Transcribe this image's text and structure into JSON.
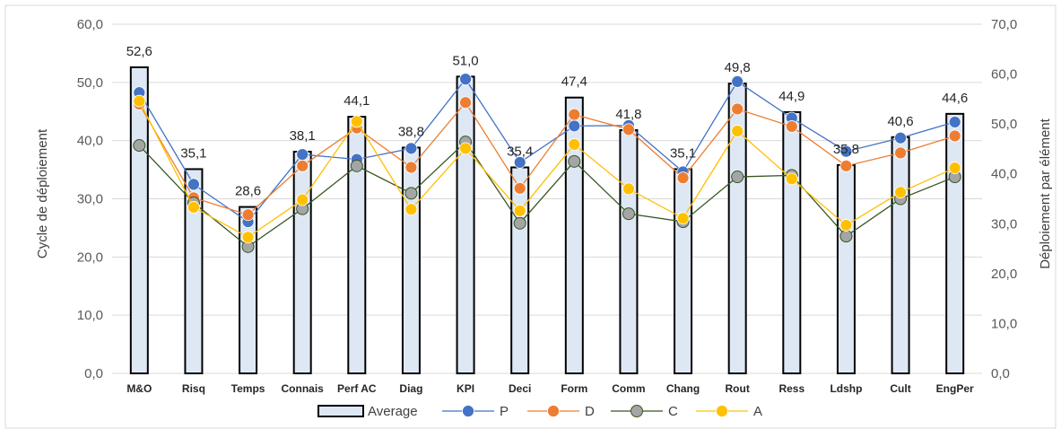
{
  "chart_data": {
    "type": "bar",
    "categories": [
      "M&O",
      "Risq",
      "Temps",
      "Connais",
      "Perf AC",
      "Diag",
      "KPI",
      "Deci",
      "Form",
      "Comm",
      "Chang",
      "Rout",
      "Ress",
      "Ldshp",
      "Cult",
      "EngPer"
    ],
    "bar_series": {
      "name": "Average",
      "values": [
        52.6,
        35.1,
        28.6,
        38.1,
        44.1,
        38.8,
        51.0,
        35.4,
        47.4,
        41.8,
        35.1,
        49.8,
        44.9,
        35.8,
        40.6,
        44.6
      ],
      "labels": [
        "52,6",
        "35,1",
        "28,6",
        "38,1",
        "44,1",
        "38,8",
        "51,0",
        "35,4",
        "47,4",
        "41,8",
        "35,1",
        "49,8",
        "44,9",
        "35,8",
        "40,6",
        "44,6"
      ],
      "fill": "#dee8f5",
      "stroke": "#000000",
      "axis": "left"
    },
    "line_series": [
      {
        "name": "P",
        "color": "#4472c4",
        "axis": "right",
        "values": [
          56.3,
          37.9,
          30.4,
          43.9,
          42.9,
          45.1,
          59.0,
          42.3,
          49.6,
          49.7,
          40.4,
          58.5,
          51.2,
          44.5,
          47.2,
          50.4
        ]
      },
      {
        "name": "D",
        "color": "#ed7d31",
        "axis": "right",
        "values": [
          54.0,
          35.2,
          31.8,
          41.6,
          49.2,
          41.3,
          54.3,
          37.1,
          51.9,
          48.9,
          39.2,
          53.0,
          49.5,
          41.6,
          44.2,
          47.6
        ]
      },
      {
        "name": "C",
        "color": "#a5a5a5",
        "stroke": "#375623",
        "axis": "right",
        "values": [
          45.7,
          34.2,
          25.4,
          33.0,
          41.6,
          36.1,
          46.4,
          30.1,
          42.5,
          32.0,
          30.4,
          39.4,
          39.7,
          27.5,
          35.0,
          39.4
        ]
      },
      {
        "name": "A",
        "color": "#ffc000",
        "axis": "right",
        "values": [
          54.6,
          33.3,
          27.3,
          34.8,
          50.5,
          32.9,
          45.1,
          32.6,
          45.9,
          37.0,
          31.1,
          48.6,
          39.0,
          29.7,
          36.3,
          41.2
        ]
      }
    ],
    "left_axis": {
      "label": "Cycle de déploiement",
      "ylim": [
        0,
        60
      ],
      "ticks": [
        "0,0",
        "10,0",
        "20,0",
        "30,0",
        "40,0",
        "50,0",
        "60,0"
      ]
    },
    "right_axis": {
      "label": "Déploiement par élément",
      "ylim": [
        0,
        70
      ],
      "ticks": [
        "0,0",
        "10,0",
        "20,0",
        "30,0",
        "40,0",
        "50,0",
        "60,0",
        "70,0"
      ]
    },
    "grid": true,
    "legend": {
      "position": "bottom",
      "entries": [
        "Average",
        "P",
        "D",
        "C",
        "A"
      ]
    }
  }
}
